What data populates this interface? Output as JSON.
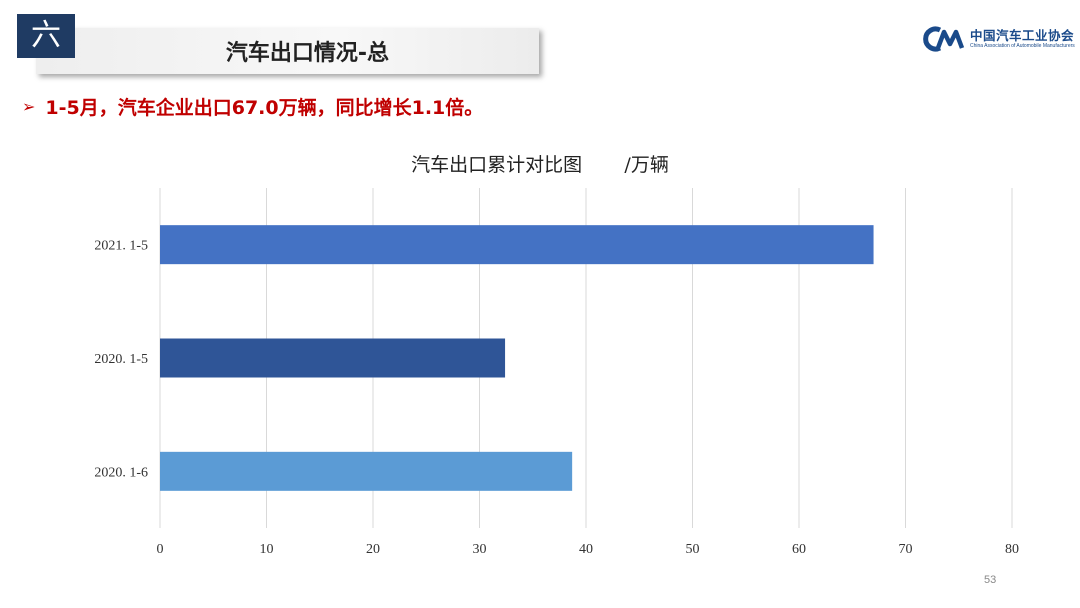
{
  "slide": {
    "section_number": "六",
    "title": "汽车出口情况-总",
    "headline_bullet": "➢",
    "headline": "1-5月，汽车企业出口67.0万辆，同比增长1.1倍。",
    "page_number": "53"
  },
  "logo": {
    "chinese": "中国汽车工业协会",
    "english": "China Association of Automobile Manufacturers",
    "brand_color": "#1a4a8a"
  },
  "chart_data": {
    "type": "bar",
    "orientation": "horizontal",
    "title": "汽车出口累计对比图       /万辆",
    "categories": [
      "2021. 1-5",
      "2020. 1-5",
      "2020. 1-6"
    ],
    "values": [
      67.0,
      32.4,
      38.7
    ],
    "colors": [
      "#4472c4",
      "#2f5597",
      "#5b9bd5"
    ],
    "xlim": [
      0,
      80
    ],
    "xticks": [
      0,
      10,
      20,
      30,
      40,
      50,
      60,
      70,
      80
    ],
    "grid": true,
    "xlabel": "",
    "ylabel": ""
  }
}
